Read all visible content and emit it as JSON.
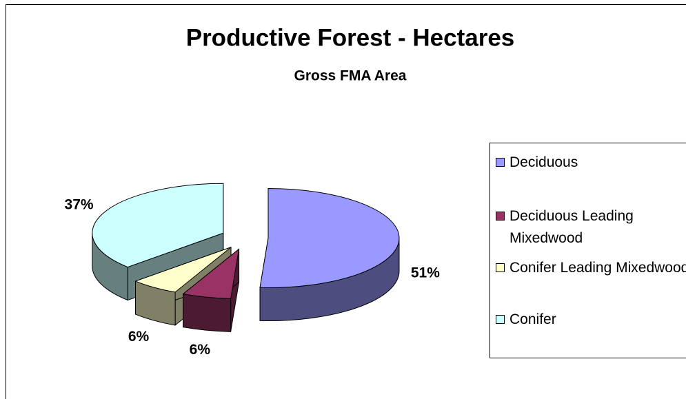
{
  "chart_data": {
    "type": "pie3d",
    "title": "Productive Forest - Hectares",
    "subtitle": "Gross FMA Area",
    "categories": [
      "Deciduous",
      "Deciduous Leading Mixedwood",
      "Conifer Leading Mixedwood",
      "Conifer"
    ],
    "values": [
      51,
      6,
      6,
      37
    ],
    "value_labels": [
      "51%",
      "6%",
      "6%",
      "37%"
    ],
    "colors": [
      "#9999ff",
      "#993366",
      "#ffffcc",
      "#ccffff"
    ],
    "legend": "right"
  }
}
